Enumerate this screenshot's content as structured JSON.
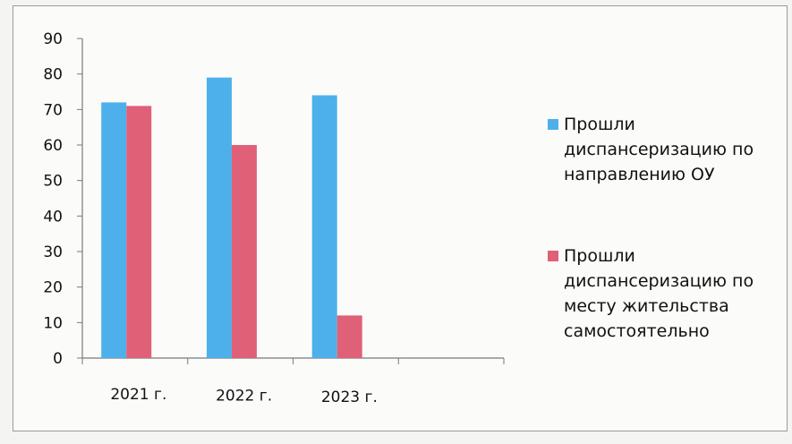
{
  "chart_data": {
    "type": "bar",
    "categories": [
      "2021 г.",
      "2022 г.",
      "2023 г.",
      ""
    ],
    "series": [
      {
        "name": "Прошли\nдиспансеризацию по\nнаправлению ОУ",
        "color": "#4db0ea",
        "values": [
          72,
          79,
          74,
          null
        ]
      },
      {
        "name": "Прошли\nдиспансеризацию по\nместу жительства\nсамостоятельно",
        "color": "#e06078",
        "values": [
          71,
          60,
          12,
          null
        ]
      }
    ],
    "ylim": [
      0,
      90
    ],
    "yticks": [
      0,
      10,
      20,
      30,
      40,
      50,
      60,
      70,
      80,
      90
    ],
    "title": "",
    "xlabel": "",
    "ylabel": "",
    "grid": false,
    "legend": "right"
  }
}
